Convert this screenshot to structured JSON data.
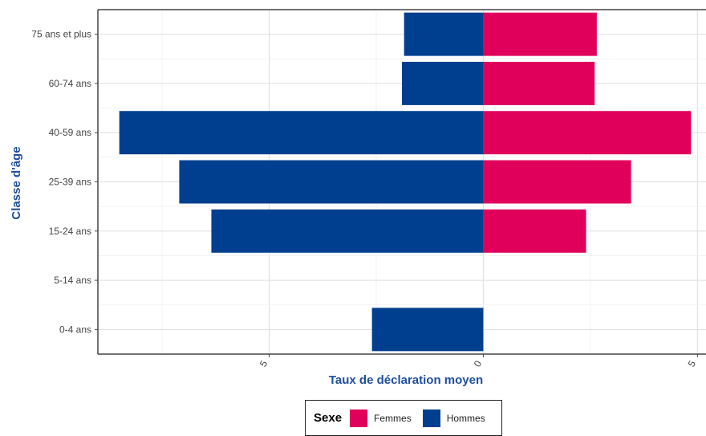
{
  "chart_data": {
    "type": "bar",
    "orientation": "horizontal-diverging",
    "categories": [
      "75 ans et plus",
      "60-74 ans",
      "40-59 ans",
      "25-39 ans",
      "15-24 ans",
      "5-14 ans",
      "0-4 ans"
    ],
    "series": [
      {
        "name": "Femmes",
        "color": "#e0005c",
        "values": [
          2.65,
          2.6,
          4.85,
          3.45,
          2.4,
          0,
          0
        ]
      },
      {
        "name": "Hommes",
        "color": "#003f8f",
        "values": [
          1.85,
          1.9,
          8.5,
          7.1,
          6.35,
          0,
          2.6
        ]
      }
    ],
    "xlabel": "Taux de déclaration moyen",
    "ylabel": "Classe d'âge",
    "xlim": [
      -9,
      5.2
    ],
    "xticks": [
      -5,
      0,
      5
    ],
    "xtick_labels": [
      "5",
      "0",
      "5"
    ],
    "grid": true,
    "legend": {
      "title": "Sexe",
      "position": "bottom"
    }
  }
}
